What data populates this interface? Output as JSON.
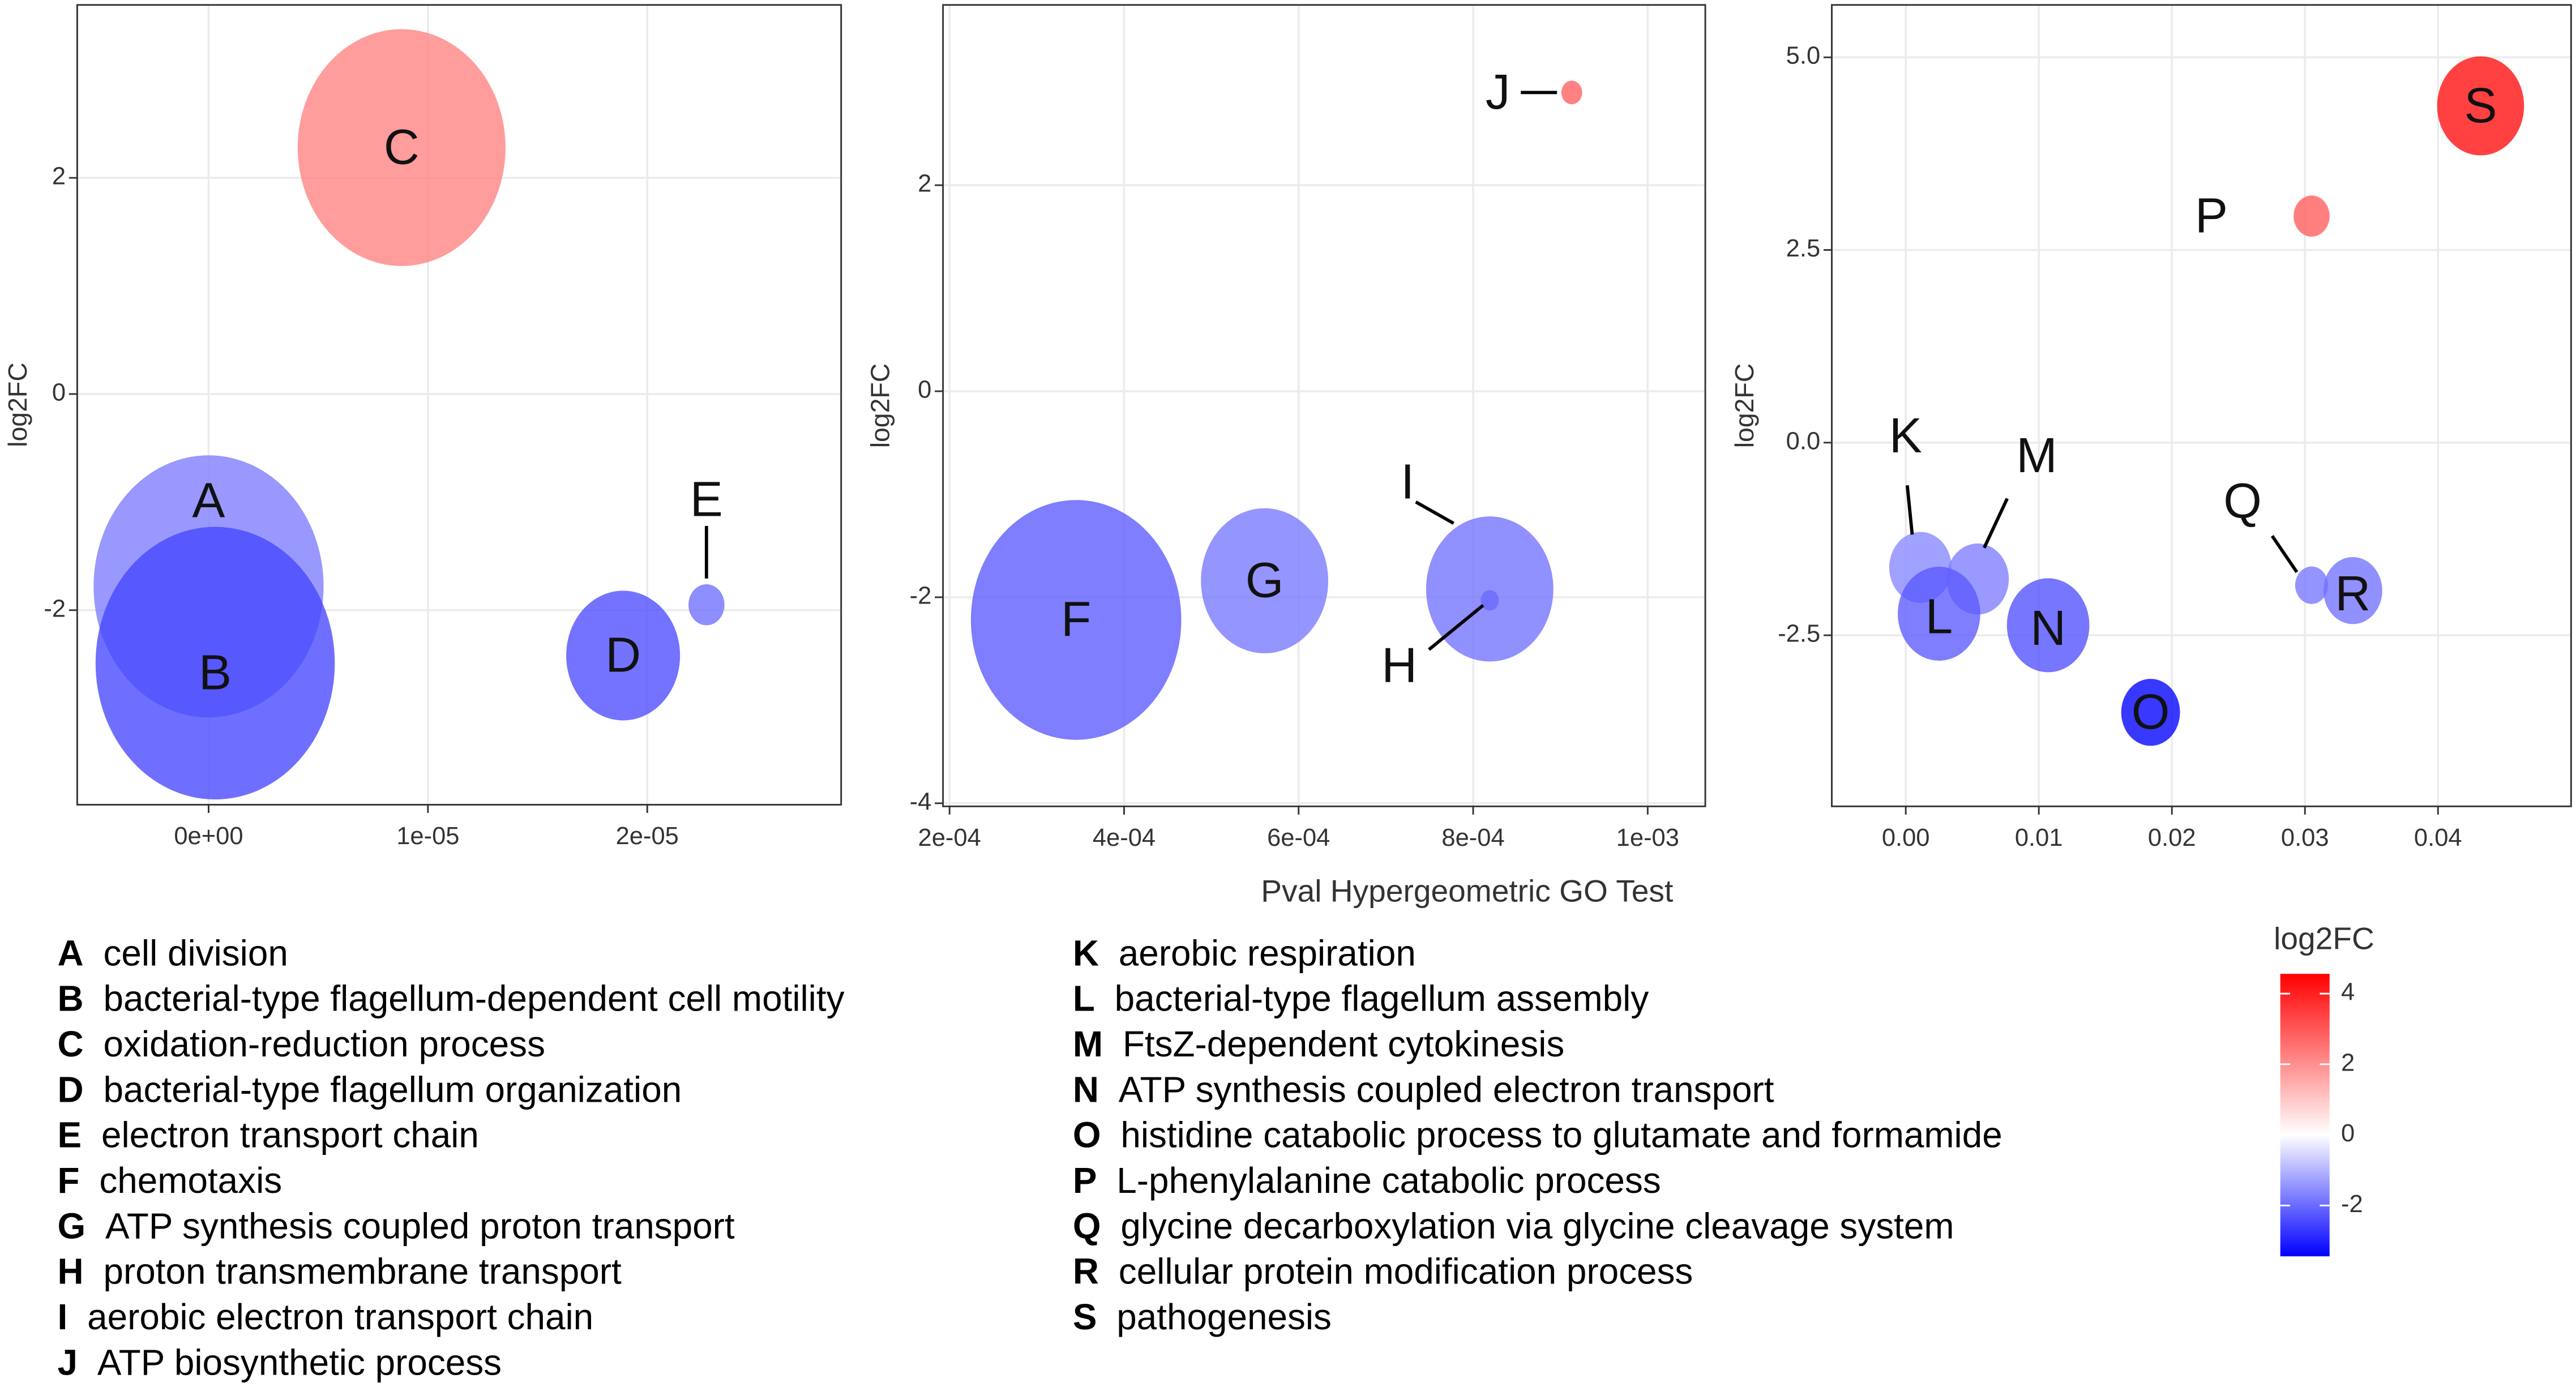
{
  "chart_data": [
    {
      "type": "bubble",
      "labels": [
        "A",
        "B",
        "C",
        "D",
        "E"
      ],
      "x": [
        0,
        3e-07,
        8.8e-06,
        1.89e-05,
        2.27e-05
      ],
      "y": [
        -1.78,
        -2.49,
        2.28,
        -2.42,
        -1.95
      ],
      "sizes": [
        49,
        53,
        40,
        12,
        1.2
      ],
      "xlim": [
        -5.99e-06,
        2.884e-05
      ],
      "ylim": [
        -3.8,
        3.6
      ],
      "xticks": [
        {
          "value": 0,
          "label": "0e+00"
        },
        {
          "value": 1e-05,
          "label": "1e-05"
        },
        {
          "value": 2e-05,
          "label": "2e-05"
        }
      ],
      "yticks": [
        2,
        0,
        -2
      ],
      "y_label": "log2FC",
      "grid": true
    },
    {
      "type": "bubble",
      "labels": [
        "F",
        "G",
        "I",
        "H",
        "J"
      ],
      "x": [
        0.000345,
        0.000561,
        0.000819,
        0.000819,
        0.000913
      ],
      "y": [
        -2.22,
        -1.84,
        -1.92,
        -2.03,
        2.9
      ],
      "sizes": [
        41,
        15,
        15,
        0.3,
        0.4
      ],
      "xlim": [
        0.0001925,
        0.001066
      ],
      "ylim": [
        -4.03,
        3.75
      ],
      "xticks": [
        {
          "value": 0.0002,
          "label": "2e-04"
        },
        {
          "value": 0.0004,
          "label": "4e-04"
        },
        {
          "value": 0.0006,
          "label": "6e-04"
        },
        {
          "value": 0.0008,
          "label": "8e-04"
        },
        {
          "value": 0.001,
          "label": "1e-03"
        }
      ],
      "yticks": [
        2,
        0,
        -2,
        -4
      ],
      "y_label": "log2FC",
      "x_label": "Pval Hypergeometric GO Test",
      "grid": true
    },
    {
      "type": "bubble",
      "labels": [
        "S",
        "P",
        "K",
        "M",
        "L",
        "N",
        "Q",
        "R",
        "O"
      ],
      "x": [
        0.0432,
        0.0305,
        0.0011,
        0.0054,
        0.0025,
        0.0107,
        0.0305,
        0.0336,
        0.0184
      ],
      "y": [
        4.37,
        2.94,
        -1.62,
        -1.77,
        -2.22,
        -2.37,
        -1.85,
        -1.92,
        -3.5
      ],
      "sizes": [
        7,
        1.2,
        3.6,
        3.6,
        6.3,
        6.3,
        1,
        3.2,
        3.2
      ],
      "xlim": [
        -0.00556,
        0.05
      ],
      "ylim": [
        -4.72,
        5.68
      ],
      "xticks": [
        {
          "value": 0,
          "label": "0.00"
        },
        0.01,
        0.02,
        0.03,
        0.04
      ],
      "yticks": [
        {
          "value": 5,
          "label": "5.0"
        },
        2.5,
        {
          "value": 0,
          "label": "0.0"
        },
        -2.5
      ],
      "y_label": "log2FC",
      "grid": true
    }
  ],
  "colorbar": {
    "title": "log2FC",
    "ticks": [
      4,
      2,
      0,
      -2
    ],
    "lim": [
      -3.44,
      4.56
    ],
    "low": "#0000ff",
    "mid": "#ffffff",
    "high": "#ff0000"
  },
  "key": [
    {
      "letter": "A",
      "text": "cell division"
    },
    {
      "letter": "B",
      "text": "bacterial-type flagellum-dependent cell motility"
    },
    {
      "letter": "C",
      "text": "oxidation-reduction process"
    },
    {
      "letter": "D",
      "text": "bacterial-type flagellum organization"
    },
    {
      "letter": "E",
      "text": "electron transport chain"
    },
    {
      "letter": "F",
      "text": "chemotaxis"
    },
    {
      "letter": "G",
      "text": "ATP synthesis coupled proton transport"
    },
    {
      "letter": "H",
      "text": "proton transmembrane transport"
    },
    {
      "letter": "I",
      "text": "aerobic electron transport chain"
    },
    {
      "letter": "J",
      "text": "ATP biosynthetic process"
    },
    {
      "letter": "K",
      "text": "aerobic respiration"
    },
    {
      "letter": "L",
      "text": "bacterial-type flagellum assembly"
    },
    {
      "letter": "M",
      "text": "FtsZ-dependent cytokinesis"
    },
    {
      "letter": "N",
      "text": "ATP synthesis coupled electron transport"
    },
    {
      "letter": "O",
      "text": "histidine catabolic process to glutamate and formamide"
    },
    {
      "letter": "P",
      "text": "L-phenylalanine catabolic process"
    },
    {
      "letter": "Q",
      "text": "glycine decarboxylation via glycine cleavage system"
    },
    {
      "letter": "R",
      "text": "cellular protein modification process"
    },
    {
      "letter": "S",
      "text": "pathogenesis"
    }
  ]
}
